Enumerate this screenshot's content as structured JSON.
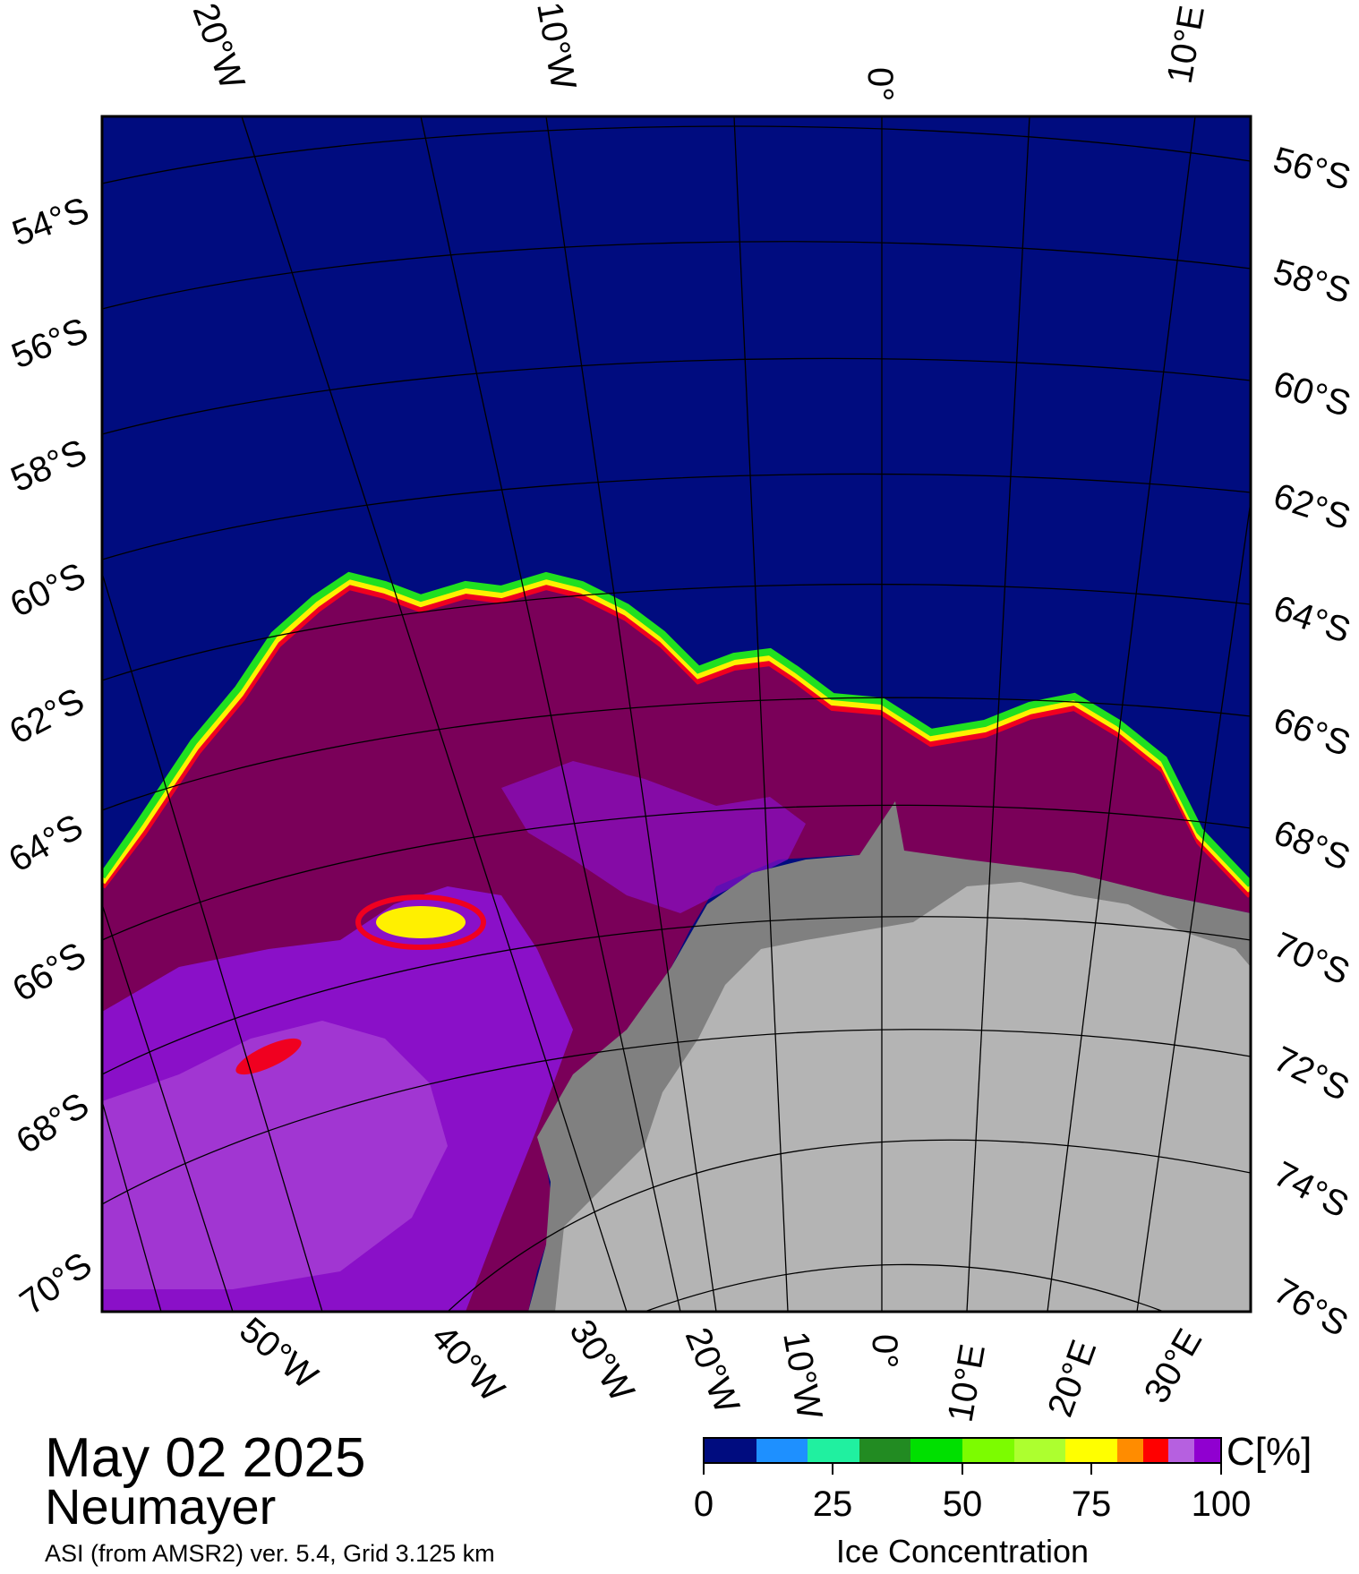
{
  "map": {
    "colors": {
      "ocean": "#000c7f",
      "ice_high": "#7a0059",
      "ice_purple": "#8a10c8",
      "ice_lilac": "#b050d8",
      "ice_red": "#f00020",
      "ice_yellow": "#fff000",
      "ice_green": "#20e020",
      "land_ice": "#b4b4b4",
      "shelf_ice": "#808080",
      "grid": "#000000"
    },
    "top_labels": [
      "20°W",
      "10°W",
      "0°",
      "10°E"
    ],
    "left_labels": [
      "54°S",
      "56°S",
      "58°S",
      "60°S",
      "62°S",
      "64°S",
      "66°S",
      "68°S",
      "70°S"
    ],
    "right_labels": [
      "56°S",
      "58°S",
      "60°S",
      "62°S",
      "64°S",
      "66°S",
      "68°S",
      "70°S",
      "72°S",
      "74°S",
      "76°S"
    ],
    "bottom_labels": [
      "50°W",
      "40°W",
      "30°W",
      "20°W",
      "10°W",
      "0°",
      "10°E",
      "20°E",
      "30°E"
    ]
  },
  "info": {
    "date": "May 02 2025",
    "station": "Neumayer",
    "product": "ASI (from AMSR2) ver. 5.4,  Grid 3.125 km"
  },
  "colorbar": {
    "unit": "C[%]",
    "title": "Ice Concentration",
    "ticks": [
      "0",
      "25",
      "50",
      "75",
      "100"
    ],
    "colors": [
      "#000c7f",
      "#000c7f",
      "#1e90ff",
      "#1e90ff",
      "#20f0a0",
      "#20f0a0",
      "#228b22",
      "#228b22",
      "#00e000",
      "#00e000",
      "#7cfc00",
      "#7cfc00",
      "#adff2f",
      "#adff2f",
      "#ffff00",
      "#ffff00",
      "#ff8c00",
      "#ff0000",
      "#b660e0",
      "#9000d0"
    ]
  }
}
